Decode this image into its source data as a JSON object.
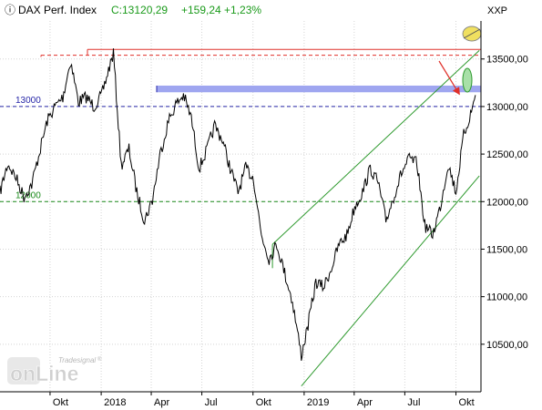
{
  "chart_data": {
    "type": "line",
    "title": "DAX Perf. Index",
    "quote": {
      "last": "C:13120,29",
      "change": "+159,24",
      "change_pct": "+1,23%",
      "title_color": "#000000",
      "quote_color": "#1a9a1a"
    },
    "exchange": "XXP",
    "ylim": [
      10000,
      13900
    ],
    "yticks": [
      "13500,00",
      "13000,00",
      "12500,00",
      "12000,00",
      "11500,00",
      "11000,00",
      "10500,00"
    ],
    "ytick_values": [
      13500,
      13000,
      12500,
      12000,
      11500,
      11000,
      10500
    ],
    "xticks": [
      "Okt",
      "2018",
      "Apr",
      "Jul",
      "Okt",
      "2019",
      "Apr",
      "Jul",
      "Okt"
    ],
    "xtick_dates": [
      "2017-10-01",
      "2018-01-01",
      "2018-04-01",
      "2018-07-01",
      "2018-10-01",
      "2019-01-01",
      "2019-04-01",
      "2019-07-01",
      "2019-10-01"
    ],
    "xlim": [
      "2017-07-03",
      "2019-11-15"
    ],
    "grid": true,
    "series": [
      {
        "color": "#000000",
        "x": [
          "2017-07-03",
          "2017-07-17",
          "2017-08-01",
          "2017-08-15",
          "2017-08-29",
          "2017-09-12",
          "2017-09-26",
          "2017-10-10",
          "2017-10-24",
          "2017-11-07",
          "2017-11-21",
          "2017-12-05",
          "2017-12-19",
          "2018-01-02",
          "2018-01-16",
          "2018-01-23",
          "2018-02-06",
          "2018-02-20",
          "2018-03-06",
          "2018-03-20",
          "2018-04-03",
          "2018-04-17",
          "2018-05-02",
          "2018-05-15",
          "2018-05-29",
          "2018-06-12",
          "2018-06-26",
          "2018-07-10",
          "2018-07-24",
          "2018-08-07",
          "2018-08-21",
          "2018-09-04",
          "2018-09-18",
          "2018-10-02",
          "2018-10-16",
          "2018-10-30",
          "2018-11-13",
          "2018-11-27",
          "2018-12-11",
          "2018-12-27",
          "2019-01-08",
          "2019-01-22",
          "2019-02-05",
          "2019-02-19",
          "2019-03-05",
          "2019-03-19",
          "2019-04-02",
          "2019-04-16",
          "2019-04-30",
          "2019-05-14",
          "2019-05-28",
          "2019-06-11",
          "2019-06-25",
          "2019-07-09",
          "2019-07-23",
          "2019-08-06",
          "2019-08-20",
          "2019-09-03",
          "2019-09-17",
          "2019-10-01",
          "2019-10-15",
          "2019-10-29",
          "2019-11-05"
        ],
        "y": [
          12100,
          12400,
          12250,
          12050,
          12180,
          12520,
          12850,
          13000,
          13100,
          13480,
          13050,
          13100,
          13000,
          13120,
          13420,
          13560,
          12380,
          12550,
          12100,
          11800,
          12020,
          12500,
          12850,
          13020,
          13120,
          12880,
          12350,
          12540,
          12800,
          12650,
          12350,
          12100,
          12350,
          12250,
          11650,
          11400,
          11550,
          11250,
          10950,
          10380,
          10700,
          11150,
          11100,
          11300,
          11550,
          11650,
          11950,
          12100,
          12350,
          12200,
          11800,
          12050,
          12300,
          12450,
          12400,
          11750,
          11650,
          11950,
          12400,
          12100,
          12700,
          12950,
          13120
        ]
      }
    ],
    "annotations": {
      "lines": [
        {
          "label": "13000",
          "value": 13000,
          "color": "#2626a8",
          "style": "dashed"
        },
        {
          "label": "12000",
          "value": 12000,
          "color": "#1a8a1a",
          "style": "dashed"
        },
        {
          "value": 13540,
          "color": "#e0302a",
          "style": "dashed"
        },
        {
          "value": 13600,
          "color": "#e0302a",
          "style": "solid"
        }
      ],
      "resistance_band": {
        "from": 13150,
        "to": 13220,
        "color": "#9fa6f0"
      },
      "channel": {
        "color": "#2e9a2e",
        "lower": [
          [
            "2018-12-27",
            10060
          ],
          [
            "2019-11-12",
            12270
          ]
        ],
        "upper": [
          [
            "2018-11-05",
            11550
          ],
          [
            "2019-11-12",
            13590
          ]
        ]
      },
      "arrow_color": "#e0302a",
      "ellipse_colors": [
        "#f0e060",
        "#a8e0a8"
      ]
    },
    "watermark": {
      "small": "Tradesignal",
      "registered": "®",
      "big": "onLine"
    }
  }
}
